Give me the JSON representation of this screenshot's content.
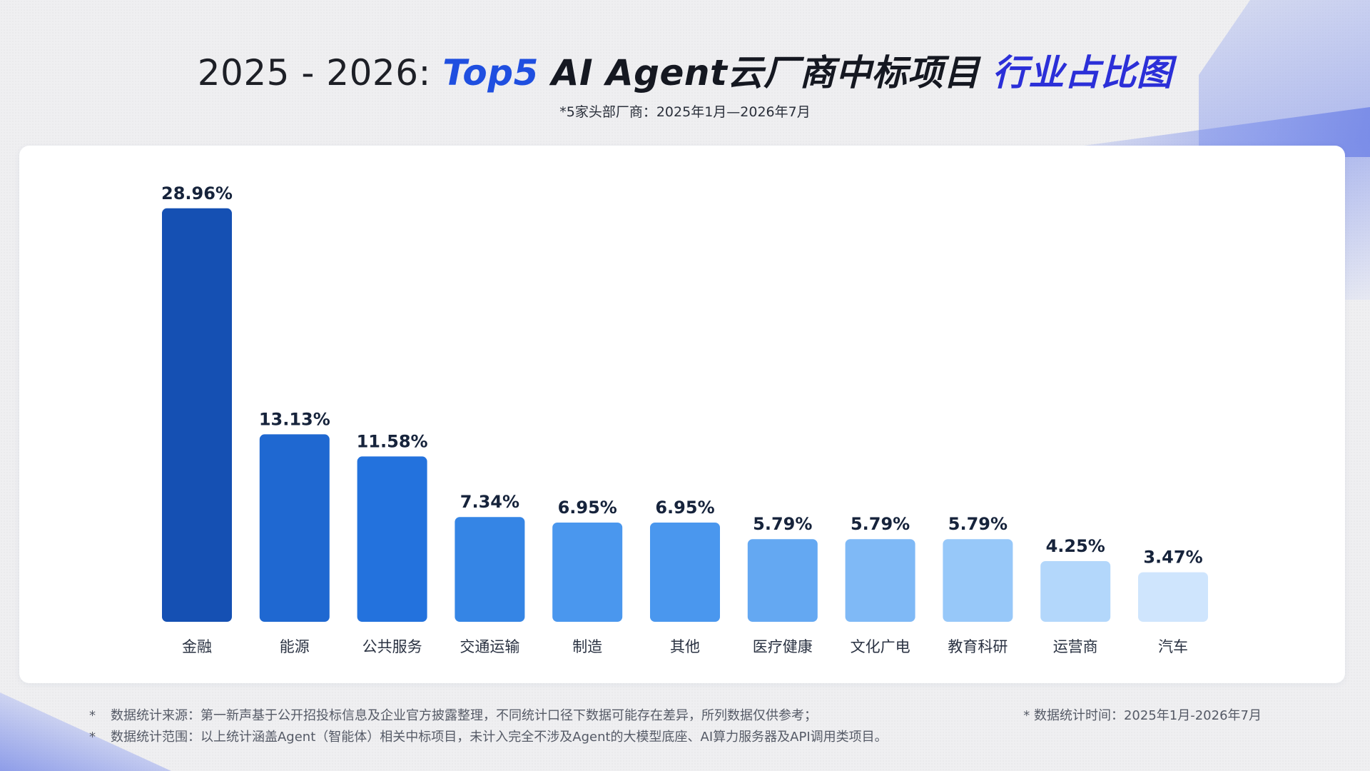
{
  "title": {
    "years": "2025 - 2026: ",
    "top5": "Top5",
    "main": " AI Agent云厂商中标项目 ",
    "tail": "行业占比图"
  },
  "subtitle": "*5家头部厂商：2025年1月—2026年7月",
  "chart_data": {
    "type": "bar",
    "title": "2025 - 2026: Top5 AI Agent云厂商中标项目 行业占比图",
    "xlabel": "",
    "ylabel": "",
    "grid": false,
    "ylim": [
      0,
      30
    ],
    "categories": [
      "金融",
      "能源",
      "公共服务",
      "交通运输",
      "制造",
      "其他",
      "医疗健康",
      "文化广电",
      "教育科研",
      "运营商",
      "汽车"
    ],
    "values": [
      28.96,
      13.13,
      11.58,
      7.34,
      6.95,
      6.95,
      5.79,
      5.79,
      5.79,
      4.25,
      3.47
    ],
    "value_labels": [
      "28.96%",
      "13.13%",
      "11.58%",
      "7.34%",
      "6.95%",
      "6.95%",
      "5.79%",
      "5.79%",
      "5.79%",
      "4.25%",
      "3.47%"
    ],
    "colors": [
      "#1550b3",
      "#1f68d1",
      "#2372dd",
      "#3585e5",
      "#4a97ee",
      "#4a97ee",
      "#64a8f2",
      "#7fb9f6",
      "#97c8f9",
      "#b3d7fb",
      "#cfe5fd"
    ]
  },
  "footnotes": {
    "star": "*",
    "line1": "数据统计来源：第一新声基于公开招投标信息及企业官方披露整理，不同统计口径下数据可能存在差异，所列数据仅供参考；",
    "line2": "数据统计范围：以上统计涵盖Agent（智能体）相关中标项目，未计入完全不涉及Agent的大模型底座、AI算力服务器及API调用类项目。",
    "right": "* 数据统计时间：2025年1月-2026年7月"
  }
}
